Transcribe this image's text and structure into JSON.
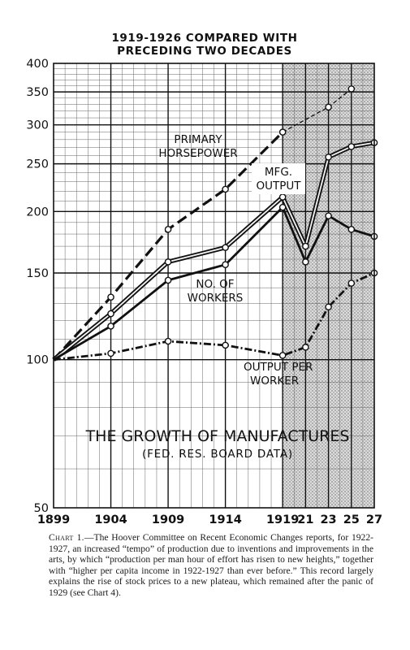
{
  "chart_data": {
    "type": "line",
    "title": "1919-1926 COMPARED WITH",
    "subtitle": "PRECEDING TWO DECADES",
    "inner_title": "THE GROWTH OF MANUFACTURES",
    "inner_subtitle": "(FED. RES. BOARD DATA)",
    "y_scale": "log",
    "ylim": [
      50,
      400
    ],
    "y_ticks": [
      50,
      100,
      150,
      200,
      250,
      300,
      350,
      400
    ],
    "x_ticks": [
      "1899",
      "1904",
      "1909",
      "1914",
      "1919",
      "21",
      "23",
      "25",
      "27"
    ],
    "x_tick_years": [
      1899,
      1904,
      1909,
      1914,
      1919,
      1921,
      1923,
      1925,
      1927
    ],
    "xlim": [
      1899,
      1927
    ],
    "shaded_range": [
      1919,
      1927
    ],
    "grid": true,
    "series": [
      {
        "name": "PRIMARY HORSEPOWER",
        "label_lines": [
          "PRIMARY",
          "HORSEPOWER"
        ],
        "style": "dash",
        "x": [
          1899,
          1904,
          1909,
          1914,
          1919,
          1923,
          1925
        ],
        "y": [
          100,
          134,
          184,
          222,
          290,
          326,
          355
        ]
      },
      {
        "name": "MFG. OUTPUT",
        "label_lines": [
          "MFG.",
          "OUTPUT"
        ],
        "style": "double",
        "x": [
          1899,
          1904,
          1909,
          1914,
          1919,
          1921,
          1923,
          1925,
          1927
        ],
        "y": [
          100,
          124,
          158,
          169,
          214,
          170,
          258,
          271,
          276
        ]
      },
      {
        "name": "NO. OF WORKERS",
        "label_lines": [
          "NO. OF",
          "WORKERS"
        ],
        "style": "solid",
        "x": [
          1899,
          1904,
          1909,
          1914,
          1919,
          1921,
          1923,
          1925,
          1927
        ],
        "y": [
          100,
          117,
          145,
          156,
          204,
          158,
          196,
          184,
          178
        ]
      },
      {
        "name": "OUTPUT PER WORKER",
        "label_lines": [
          "OUTPUT   PER",
          "WORKER"
        ],
        "style": "dashdot",
        "x": [
          1899,
          1904,
          1909,
          1914,
          1919,
          1921,
          1923,
          1925,
          1927
        ],
        "y": [
          100,
          103,
          109,
          107,
          102,
          106,
          128,
          143,
          150
        ]
      }
    ]
  },
  "caption": {
    "lead": "Chart 1.",
    "text": "—The Hoover Committee on Recent Economic Changes reports, for 1922-1927, an increased “tempo” of production due to inventions and improvements in the arts, by which “production per man hour of effort has risen to new heights,” together with “higher per capita income in 1922-1927 than ever before.” This record largely explains the rise of stock prices to a new plateau, which remained after the panic of 1929 (see Chart 4)."
  }
}
